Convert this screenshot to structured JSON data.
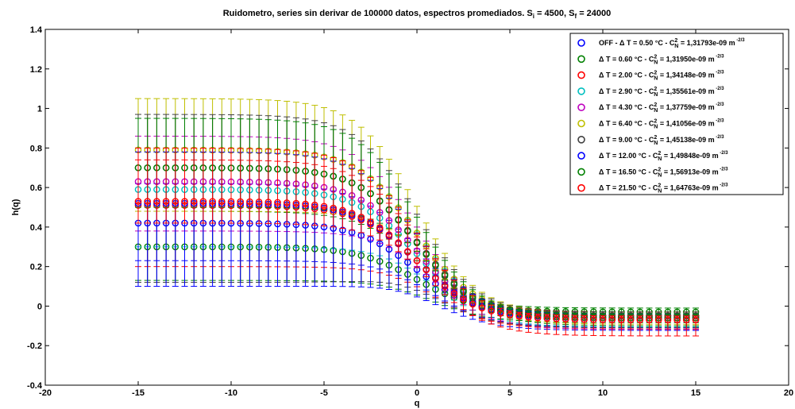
{
  "chart_data": {
    "type": "scatter",
    "title": "Ruidometro, series sin derivar de 100000 datos, espectros promediados. S",
    "title_parts": [
      "Ruidometro, series sin derivar de 100000 datos, espectros promediados. S",
      "i",
      " = 4500, S",
      "f",
      " = 24000"
    ],
    "xlabel": "q",
    "ylabel": "h(q)",
    "xlim": [
      -20,
      20
    ],
    "ylim": [
      -0.4,
      1.4
    ],
    "x_ticks": [
      -20,
      -15,
      -10,
      -5,
      0,
      5,
      10,
      15,
      20
    ],
    "y_ticks": [
      -0.4,
      -0.2,
      0,
      0.2,
      0.4,
      0.6,
      0.8,
      1,
      1.2,
      1.4
    ],
    "x_tick_labels": [
      "-20",
      "-15",
      "-10",
      "-5",
      "0",
      "5",
      "10",
      "15",
      "20"
    ],
    "y_tick_labels": [
      "-0.4",
      "-0.2",
      "0",
      "0.2",
      "0.4",
      "0.6",
      "0.8",
      "1",
      "1.2",
      "1.4"
    ],
    "grid": false,
    "legend_position": "top-right",
    "marker": "open-circle",
    "error_bars": true,
    "q_range": [
      -15,
      15.2
    ],
    "series": [
      {
        "name": "OFF - Δ T = 0.50 °C - C",
        "unit": " = 1,31793e-09 m",
        "color": "#0000ff",
        "params": [
          0.42,
          0.23,
          0.19,
          0.1,
          -0.05,
          -0.19,
          0.18
        ]
      },
      {
        "name": "Δ T = 0.60  °C - C",
        "unit": " = 1,31950e-09 m",
        "color": "#008000",
        "params": [
          0.3,
          0.13,
          0.17,
          0.1,
          -0.03,
          -0.18,
          0.17
        ]
      },
      {
        "name": "Δ T = 2.00  °C - C",
        "unit": " = 1,34148e-09 m",
        "color": "#ff0000",
        "params": [
          0.51,
          0.2,
          0.22,
          0.1,
          -0.05,
          -0.22,
          0.21
        ]
      },
      {
        "name": "Δ T = 2.90  °C - C",
        "unit": " = 1,35561e-09 m",
        "color": "#00bfbf",
        "params": [
          0.59,
          0.3,
          0.2,
          0.1,
          -0.06,
          -0.15,
          0.12
        ]
      },
      {
        "name": "Δ T = 4.30  °C - C",
        "unit": " = 1,37759e-09 m",
        "color": "#bf00bf",
        "params": [
          0.63,
          0.38,
          0.22,
          0.1,
          -0.07,
          -0.16,
          0.13
        ]
      },
      {
        "name": "Δ T = 6.40  °C - C",
        "unit": " = 1,41056e-09 m",
        "color": "#bfbf00",
        "params": [
          0.79,
          0.48,
          0.25,
          0.11,
          -0.05,
          -0.14,
          0.12
        ]
      },
      {
        "name": "Δ T = 9.00  °C - C",
        "unit": " = 1,45138e-09 m",
        "color": "#404040",
        "params": [
          0.7,
          0.12,
          0.26,
          0.1,
          -0.05,
          -0.2,
          0.18
        ]
      },
      {
        "name": "Δ T = 12.00 °C - C",
        "unit": " = 1,49848e-09 m",
        "color": "#0000ff",
        "params": [
          0.52,
          0.1,
          0.25,
          0.1,
          -0.06,
          -0.21,
          0.19
        ]
      },
      {
        "name": "Δ T = 16.50 °C - C",
        "unit": " = 1,56913e-09 m",
        "color": "#008000",
        "params": [
          0.7,
          0.5,
          0.24,
          0.11,
          -0.06,
          -0.13,
          0.1
        ]
      },
      {
        "name": "Δ T = 21.50 °C - C",
        "unit": " = 1,64763e-09 m",
        "color": "#ff0000",
        "params": [
          0.53,
          0.42,
          0.26,
          0.1,
          -0.07,
          -0.27,
          0.26
        ]
      }
    ]
  }
}
